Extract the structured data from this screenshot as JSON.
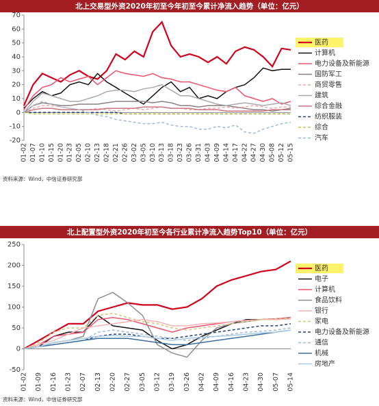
{
  "chart_data": [
    {
      "type": "line",
      "title": "北上交易型外资2020年初至今年初至今累计净流入趋势（单位：亿元）",
      "source": "资料来源：Wind，中信证券研究部",
      "categories": [
        "01-02",
        "01-07",
        "01-10",
        "01-15",
        "01-20",
        "01-23",
        "02-05",
        "02-10",
        "02-13",
        "02-18",
        "02-21",
        "02-26",
        "03-02",
        "03-05",
        "03-10",
        "03-13",
        "03-18",
        "03-23",
        "03-26",
        "03-31",
        "04-03",
        "04-09",
        "04-14",
        "04-17",
        "04-22",
        "04-27",
        "04-30",
        "05-08",
        "05-12",
        "05-15"
      ],
      "ylim": [
        -20,
        70
      ],
      "yticks": [
        -20,
        -10,
        0,
        10,
        20,
        30,
        40,
        50,
        60,
        70
      ],
      "series": [
        {
          "name": "医药",
          "color": "#d0021b",
          "dash": false,
          "values": [
            5,
            20,
            28,
            25,
            22,
            27,
            30,
            26,
            24,
            30,
            42,
            38,
            44,
            40,
            58,
            65,
            48,
            40,
            42,
            40,
            36,
            40,
            35,
            44,
            47,
            45,
            40,
            33,
            46,
            45
          ]
        },
        {
          "name": "计算机",
          "color": "#111111",
          "dash": false,
          "values": [
            3,
            10,
            15,
            12,
            14,
            20,
            22,
            20,
            28,
            22,
            18,
            14,
            10,
            6,
            12,
            18,
            22,
            15,
            18,
            10,
            12,
            10,
            15,
            18,
            20,
            25,
            32,
            30,
            31,
            31
          ]
        },
        {
          "name": "电力设备及新能源",
          "color": "#f0506e",
          "dash": false,
          "values": [
            2,
            12,
            18,
            20,
            25,
            22,
            24,
            26,
            20,
            25,
            30,
            28,
            27,
            26,
            28,
            25,
            24,
            22,
            22,
            20,
            18,
            16,
            15,
            18,
            12,
            10,
            8,
            10,
            6,
            8
          ]
        },
        {
          "name": "国防军工",
          "color": "#8e7f7f",
          "dash": false,
          "values": [
            0,
            5,
            7,
            6,
            5,
            5,
            6,
            6,
            6,
            7,
            8,
            8,
            8,
            8,
            7,
            8,
            7,
            5,
            5,
            4,
            5,
            5,
            5,
            4,
            3,
            2,
            2,
            1,
            2,
            3
          ]
        },
        {
          "name": "商贸零售",
          "color": "#f4a6a6",
          "dash": true,
          "values": [
            0,
            3,
            5,
            5,
            4,
            3,
            2,
            2,
            3,
            2,
            1,
            2,
            3,
            2,
            3,
            4,
            3,
            3,
            2,
            2,
            3,
            3,
            4,
            3,
            4,
            5,
            4,
            3,
            4,
            4
          ]
        },
        {
          "name": "建筑",
          "color": "#aaaaaa",
          "dash": false,
          "values": [
            0,
            8,
            14,
            12,
            10,
            8,
            8,
            10,
            12,
            15,
            16,
            16,
            15,
            17,
            18,
            20,
            16,
            12,
            12,
            10,
            8,
            6,
            5,
            6,
            7,
            6,
            5,
            6,
            7,
            5
          ]
        },
        {
          "name": "综合金融",
          "color": "#c9747f",
          "dash": false,
          "values": [
            0,
            2,
            3,
            3,
            2,
            2,
            2,
            2,
            2,
            3,
            3,
            3,
            3,
            4,
            4,
            4,
            3,
            3,
            3,
            2,
            2,
            2,
            1,
            1,
            1,
            1,
            1,
            2,
            2,
            2
          ]
        },
        {
          "name": "纺织服装",
          "color": "#1f3d7a",
          "dash": true,
          "values": [
            0,
            0,
            0,
            0,
            0,
            0,
            0,
            0,
            0,
            0,
            0,
            -1,
            -1,
            -1,
            -1,
            -1,
            -1,
            -1,
            -1,
            -1,
            -1,
            -1,
            -1,
            -1,
            -1,
            -1,
            -1,
            -1,
            -1,
            -1
          ]
        },
        {
          "name": "综合",
          "color": "#c8c84a",
          "dash": true,
          "values": [
            0,
            -1,
            -1,
            -1,
            -1,
            -1,
            -1,
            -1,
            -1,
            -1,
            -1,
            -1,
            -1,
            -1,
            -1,
            -1,
            -1,
            -1,
            -1,
            -1,
            -1,
            -1,
            -1,
            -1,
            -1,
            -1,
            -1,
            -1,
            -1,
            -1
          ]
        },
        {
          "name": "汽车",
          "color": "#9fb8d8",
          "dash": true,
          "values": [
            0,
            5,
            8,
            6,
            4,
            3,
            2,
            0,
            -2,
            -3,
            -5,
            -6,
            -7,
            -8,
            -8,
            -7,
            -9,
            -10,
            -10,
            -12,
            -12,
            -10,
            -11,
            -9,
            -14,
            -15,
            -12,
            -10,
            -8,
            -7
          ]
        }
      ]
    },
    {
      "type": "line",
      "title": "北上配置型外资2020年初至今各行业累计净流入趋势Top10（单位：亿元）",
      "source": "资料来源：Wind，中信证券研究部",
      "categories": [
        "01-02",
        "01-09",
        "01-16",
        "01-23",
        "02-07",
        "02-13",
        "02-20",
        "02-27",
        "03-05",
        "03-12",
        "03-19",
        "03-26",
        "04-02",
        "04-09",
        "04-16",
        "04-23",
        "04-30",
        "05-07",
        "05-14"
      ],
      "ylim": [
        -50,
        250
      ],
      "yticks": [
        -50,
        0,
        50,
        100,
        150,
        200,
        250
      ],
      "series": [
        {
          "name": "医药",
          "color": "#d0021b",
          "dash": false,
          "values": [
            0,
            20,
            40,
            60,
            60,
            90,
            100,
            110,
            105,
            105,
            95,
            100,
            120,
            150,
            165,
            175,
            185,
            190,
            210
          ]
        },
        {
          "name": "电子",
          "color": "#111111",
          "dash": false,
          "values": [
            0,
            5,
            30,
            40,
            40,
            80,
            55,
            50,
            45,
            20,
            0,
            10,
            30,
            45,
            60,
            70,
            70,
            72,
            75
          ]
        },
        {
          "name": "计算机",
          "color": "#f0506e",
          "dash": false,
          "values": [
            0,
            10,
            30,
            35,
            40,
            70,
            75,
            70,
            60,
            50,
            40,
            50,
            55,
            60,
            65,
            68,
            70,
            72,
            75
          ]
        },
        {
          "name": "食品饮料",
          "color": "#8c8c8c",
          "dash": false,
          "values": [
            0,
            5,
            15,
            20,
            30,
            120,
            135,
            110,
            80,
            10,
            -10,
            -20,
            20,
            50,
            60,
            65,
            70,
            70,
            72
          ]
        },
        {
          "name": "银行",
          "color": "#f7b3b3",
          "dash": false,
          "values": [
            0,
            10,
            20,
            35,
            50,
            55,
            60,
            65,
            70,
            65,
            55,
            55,
            60,
            62,
            65,
            68,
            70,
            70,
            72
          ]
        },
        {
          "name": "家电",
          "color": "#d6c27a",
          "dash": true,
          "values": [
            0,
            15,
            40,
            50,
            50,
            80,
            85,
            75,
            65,
            60,
            50,
            45,
            50,
            55,
            60,
            65,
            70,
            72,
            74
          ]
        },
        {
          "name": "电力设备及新能源",
          "color": "#1f3d7a",
          "dash": true,
          "values": [
            0,
            5,
            10,
            15,
            20,
            30,
            35,
            35,
            30,
            25,
            25,
            30,
            35,
            40,
            45,
            50,
            55,
            55,
            60
          ]
        },
        {
          "name": "通信",
          "color": "#9fb8d8",
          "dash": true,
          "values": [
            0,
            5,
            10,
            15,
            20,
            40,
            45,
            40,
            35,
            30,
            25,
            20,
            25,
            30,
            35,
            40,
            42,
            45,
            50
          ]
        },
        {
          "name": "机械",
          "color": "#3b6e9e",
          "dash": false,
          "values": [
            0,
            5,
            10,
            15,
            20,
            25,
            25,
            25,
            20,
            15,
            10,
            10,
            15,
            20,
            25,
            30,
            35,
            40,
            45
          ]
        },
        {
          "name": "房地产",
          "color": "#a9cbe8",
          "dash": false,
          "values": [
            0,
            5,
            15,
            20,
            25,
            30,
            32,
            30,
            30,
            25,
            20,
            25,
            28,
            30,
            32,
            35,
            38,
            40,
            45
          ]
        }
      ]
    }
  ]
}
